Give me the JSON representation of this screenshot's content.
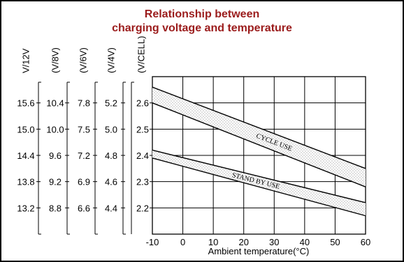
{
  "chart_data": {
    "type": "line",
    "title_line1": "Relationship between",
    "title_line2": "charging voltage and temperature",
    "title_color": "#9b1c1c",
    "xlabel": "Ambient temperature(°C)",
    "x_ticks": [
      "-10",
      "0",
      "10",
      "20",
      "30",
      "40",
      "50",
      "60"
    ],
    "xlim": [
      -10,
      60
    ],
    "ylim": [
      2.1,
      2.7
    ],
    "grid": true,
    "scales": [
      {
        "header": "V/12V",
        "ticks": [
          "15.6",
          "15.0",
          "14.4",
          "13.8",
          "13.2"
        ]
      },
      {
        "header": "(V/8V)",
        "ticks": [
          "10.4",
          "10.0",
          "9.6",
          "9.2",
          "8.8"
        ]
      },
      {
        "header": "(V/6V)",
        "ticks": [
          "7.8",
          "7.5",
          "7.2",
          "6.9",
          "6.6"
        ]
      },
      {
        "header": "(V/4V)",
        "ticks": [
          "5.2",
          "5.0",
          "4.8",
          "4.6",
          "4.4"
        ]
      },
      {
        "header": "(V/CELL)",
        "ticks": [
          "2.6",
          "2.5",
          "2.4",
          "2.3",
          "2.2"
        ]
      }
    ],
    "cell_values": [
      2.6,
      2.5,
      2.4,
      2.3,
      2.2
    ],
    "bands": [
      {
        "name": "CYCLE USE",
        "x": [
          -10,
          60
        ],
        "upper": [
          2.66,
          2.35
        ],
        "lower": [
          2.6,
          2.28
        ]
      },
      {
        "name": "STAND BY USE",
        "x": [
          -10,
          60
        ],
        "upper": [
          2.42,
          2.22
        ],
        "lower": [
          2.39,
          2.17
        ]
      }
    ]
  }
}
